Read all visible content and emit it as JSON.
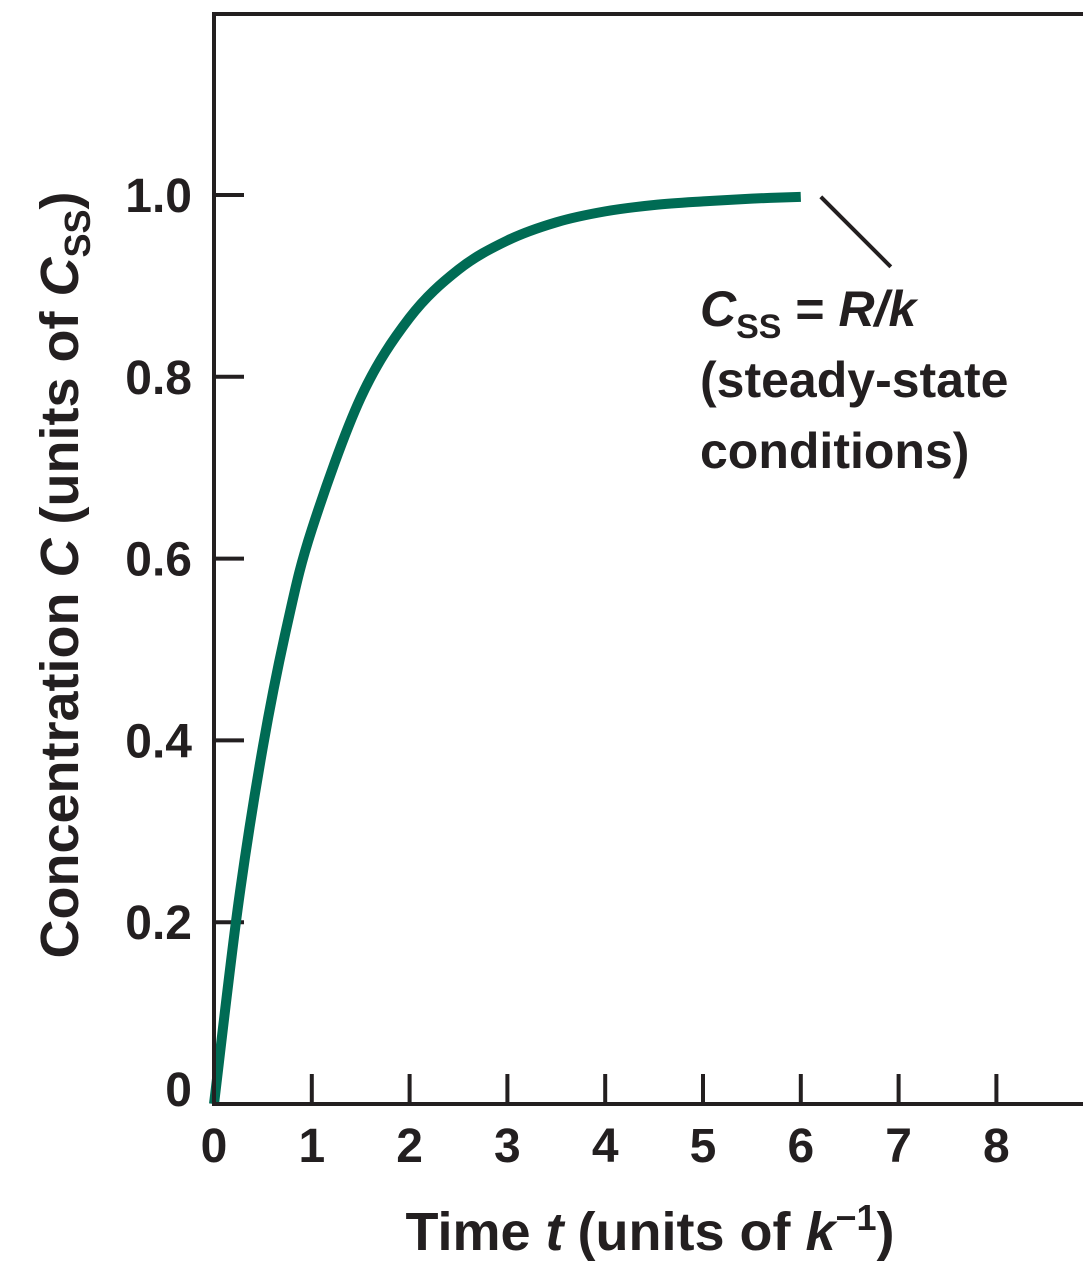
{
  "chart_data": {
    "type": "line",
    "title": "",
    "xlabel": {
      "text": "Time ",
      "var": "t",
      "paren_open": "(units of ",
      "unit_var": "k",
      "unit_sup": "−1",
      "paren_close": ")"
    },
    "ylabel": {
      "text": "Concentration ",
      "var": "C",
      "paren_open": "(units of ",
      "unit_var": "C",
      "unit_sub": "SS",
      "paren_close": ")"
    },
    "xlim": [
      0,
      9
    ],
    "ylim": [
      0,
      1.2
    ],
    "x_ticks": [
      {
        "value": 0,
        "label": "0"
      },
      {
        "value": 1,
        "label": "1"
      },
      {
        "value": 2,
        "label": "2"
      },
      {
        "value": 3,
        "label": "3"
      },
      {
        "value": 4,
        "label": "4"
      },
      {
        "value": 5,
        "label": "5"
      },
      {
        "value": 6,
        "label": "6"
      },
      {
        "value": 7,
        "label": "7"
      },
      {
        "value": 8,
        "label": "8"
      }
    ],
    "y_ticks": [
      {
        "value": 0,
        "label": "0"
      },
      {
        "value": 0.2,
        "label": "0.2"
      },
      {
        "value": 0.4,
        "label": "0.4"
      },
      {
        "value": 0.6,
        "label": "0.6"
      },
      {
        "value": 0.8,
        "label": "0.8"
      },
      {
        "value": 1.0,
        "label": "1.0"
      }
    ],
    "grid": false,
    "series": [
      {
        "color": "#006b54",
        "x": [
          0,
          0.25,
          0.5,
          0.75,
          1,
          1.5,
          2,
          2.5,
          3,
          3.5,
          4,
          4.5,
          5,
          5.5,
          6
        ],
        "y": [
          0,
          0.221,
          0.393,
          0.528,
          0.632,
          0.777,
          0.865,
          0.918,
          0.95,
          0.97,
          0.982,
          0.989,
          0.993,
          0.996,
          0.998
        ]
      }
    ],
    "annotation": {
      "line1_var": "C",
      "line1_sub": "SS",
      "line1_eq": " = ",
      "line1_rhs": "R/k",
      "line2": "(steady-state",
      "line3": "conditions)"
    }
  }
}
